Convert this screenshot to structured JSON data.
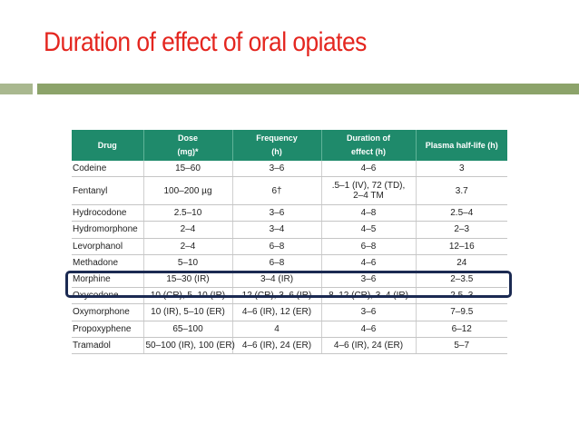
{
  "slide": {
    "title": "Duration of effect of oral opiates"
  },
  "table": {
    "headers": [
      {
        "line1": "Drug",
        "line2": ""
      },
      {
        "line1": "Dose",
        "line2": "(mg)*"
      },
      {
        "line1": "Frequency",
        "line2": "(h)"
      },
      {
        "line1": "Duration of",
        "line2": "effect (h)"
      },
      {
        "line1": "Plasma half-life (h)",
        "line2": ""
      }
    ],
    "rows": [
      [
        "Codeine",
        "15–60",
        "3–6",
        "4–6",
        "3"
      ],
      [
        "Fentanyl",
        "100–200 µg",
        "6†",
        ".5–1 (IV), 72 (TD),|2–4 TM",
        "3.7"
      ],
      [
        "Hydrocodone",
        "2.5–10",
        "3–6",
        "4–8",
        "2.5–4"
      ],
      [
        "Hydromorphone",
        "2–4",
        "3–4",
        "4–5",
        "2–3"
      ],
      [
        "Levorphanol",
        "2–4",
        "6–8",
        "6–8",
        "12–16"
      ],
      [
        "Methadone",
        "5–10",
        "6–8",
        "4–6",
        "24"
      ],
      [
        "Morphine",
        "15–30 (IR)",
        "3–4 (IR)",
        "3–6",
        "2–3.5"
      ],
      [
        "Oxycodone",
        "10 (CR), 5–10 (IR)",
        "12 (CR), 3–6 (IR)",
        "8–12 (CR), 3–4 (IR)",
        "2.5–3"
      ],
      [
        "Oxymorphone",
        "10 (IR), 5–10 (ER)",
        "4–6 (IR), 12 (ER)",
        "3–6",
        "7–9.5"
      ],
      [
        "Propoxyphene",
        "65–100",
        "4",
        "4–6",
        "6–12"
      ],
      [
        "Tramadol",
        "50–100 (IR), 100 (ER)",
        "4–6 (IR), 24 (ER)",
        "4–6 (IR), 24 (ER)",
        "5–7"
      ]
    ]
  },
  "colors": {
    "title": "#e4261f",
    "header_bg": "#1f8a6b",
    "accent_bar": "#8ca36a",
    "accent_bar_light": "#a9b88f",
    "highlight_border": "#1b2a52"
  }
}
